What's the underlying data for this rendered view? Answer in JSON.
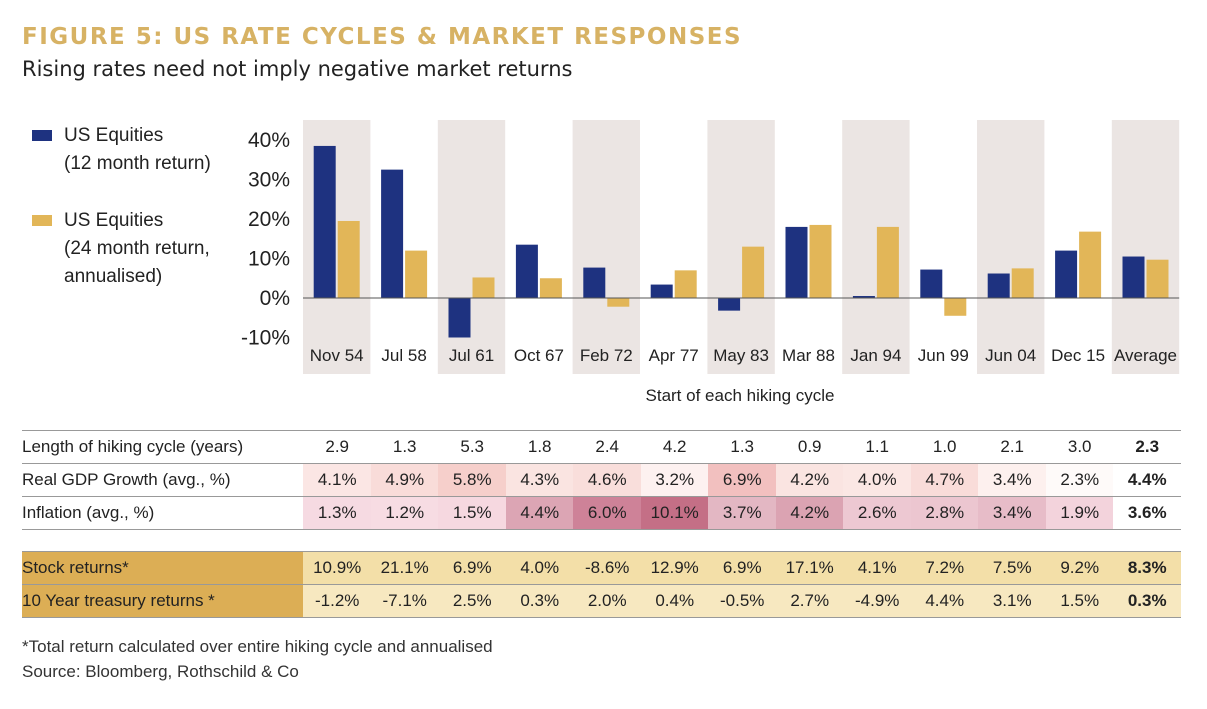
{
  "header": {
    "title": "FIGURE 5: US RATE CYCLES & MARKET RESPONSES",
    "subtitle": "Rising rates need not imply negative market returns"
  },
  "legend": [
    {
      "label": "US Equities\n(12 month return)",
      "color": "#1e3280"
    },
    {
      "label": "US Equities\n(24 month return,\nannualised)",
      "color": "#e2b658"
    }
  ],
  "chart_data": {
    "type": "bar",
    "categories": [
      "Nov 54",
      "Jul 58",
      "Jul 61",
      "Oct 67",
      "Feb 72",
      "Apr 77",
      "May 83",
      "Mar 88",
      "Jan 94",
      "Jun 99",
      "Jun 04",
      "Dec 15",
      "Average"
    ],
    "series": [
      {
        "name": "US Equities (12 month return)",
        "color": "#1e3280",
        "values": [
          38.5,
          32.5,
          -10.0,
          13.5,
          7.7,
          3.4,
          -3.2,
          18.0,
          0.5,
          7.2,
          6.2,
          12.0,
          10.5
        ]
      },
      {
        "name": "US Equities (24 month return, annualised)",
        "color": "#e2b658",
        "values": [
          19.5,
          12.0,
          5.2,
          5.0,
          -2.2,
          7.0,
          13.0,
          18.5,
          18.0,
          -4.5,
          7.5,
          16.8,
          9.7
        ]
      }
    ],
    "y_ticks": [
      "40%",
      "30%",
      "20%",
      "10%",
      "0%",
      "-10%"
    ],
    "y_tick_values": [
      40,
      30,
      20,
      10,
      0,
      -10
    ],
    "ylim": [
      -10,
      45
    ],
    "xlabel": "Start of each hiking cycle",
    "ylabel": "",
    "alternating_band_color": "#ebe5e3",
    "grid": false,
    "legend_position": "left"
  },
  "stats_top": [
    {
      "label": "Length of hiking cycle (years)",
      "values": [
        "2.9",
        "1.3",
        "5.3",
        "1.8",
        "2.4",
        "4.2",
        "1.3",
        "0.9",
        "1.1",
        "1.0",
        "2.1",
        "3.0"
      ],
      "average": "2.3",
      "colors": []
    },
    {
      "label": "Real GDP Growth (avg., %)",
      "values": [
        "4.1%",
        "4.9%",
        "5.8%",
        "4.3%",
        "4.6%",
        "3.2%",
        "6.9%",
        "4.2%",
        "4.0%",
        "4.7%",
        "3.4%",
        "2.3%"
      ],
      "average": "4.4%",
      "colors": [
        "#fbe6e4",
        "#f9dcd9",
        "#f6cfcb",
        "#fae4e1",
        "#f9dedb",
        "#fdf1f0",
        "#f2c0bf",
        "#fae4e1",
        "#fbe7e4",
        "#f9dcd9",
        "#fdf0ee",
        "#fefaf9"
      ]
    },
    {
      "label": "Inflation (avg., %)",
      "values": [
        "1.3%",
        "1.2%",
        "1.5%",
        "4.4%",
        "6.0%",
        "10.1%",
        "3.7%",
        "4.2%",
        "2.6%",
        "2.8%",
        "3.4%",
        "1.9%"
      ],
      "average": "3.6%",
      "colors": [
        "#f6dae2",
        "#f7dce3",
        "#f6d8e0",
        "#dca5b4",
        "#ce8298",
        "#c46f86",
        "#e3b7c3",
        "#dba3b2",
        "#edc8d2",
        "#ecc6d0",
        "#e7bcc8",
        "#f3d3dc"
      ]
    }
  ],
  "stats_bottom": [
    {
      "label": "Stock returns*",
      "values": [
        "10.9%",
        "21.1%",
        "6.9%",
        "4.0%",
        "-8.6%",
        "12.9%",
        "6.9%",
        "17.1%",
        "4.1%",
        "7.2%",
        "7.5%",
        "9.2%"
      ],
      "average": "8.3%"
    },
    {
      "label": "10 Year treasury returns *",
      "values": [
        "-1.2%",
        "-7.1%",
        "2.5%",
        "0.3%",
        "2.0%",
        "0.4%",
        "-0.5%",
        "2.7%",
        "-4.9%",
        "4.4%",
        "3.1%",
        "1.5%"
      ],
      "average": "0.3%"
    }
  ],
  "footnotes": [
    "*Total return calculated over entire hiking cycle and annualised",
    "Source: Bloomberg, Rothschild & Co"
  ]
}
